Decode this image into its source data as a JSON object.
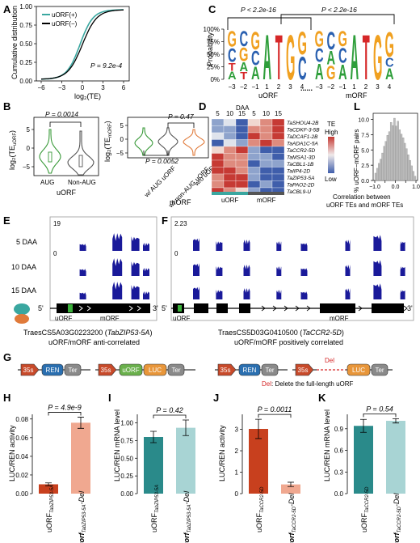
{
  "panels": {
    "A": {
      "letter": "A",
      "legend": [
        "uORF(+)",
        "uORF(−)"
      ],
      "colors": {
        "plus": "#3aa7a0",
        "minus": "#000000"
      },
      "ylabel": "Cumulative distribution",
      "xlabel": "log₂(TE)",
      "xticks": [
        "−6",
        "−3",
        "0",
        "3",
        "6"
      ],
      "yticks": [
        "0.00",
        "0.25",
        "0.50",
        "0.75",
        "1.00"
      ],
      "pvalue": "P = 9.2e-4"
    },
    "B": {
      "letter": "B",
      "left": {
        "ylabel": "log₂(TE",
        "ysub": "uORF",
        "ylabel_end": ")",
        "yticks": [
          "−5",
          "0",
          "5"
        ],
        "categories": [
          "AUG",
          "Non-AUG"
        ],
        "xlabel": "uORF",
        "pvalue": "P = 0.0014",
        "colors": [
          "#3a9a3a",
          "#555555"
        ]
      },
      "right": {
        "ylabel": "log₂(TE",
        "ysub": "mORF",
        "ylabel_end": ")",
        "yticks": [
          "−5",
          "0",
          "5"
        ],
        "categories": [
          "w/ AUG uORF",
          "w/ non-AUG uORF",
          "w/o uORF"
        ],
        "xlabel": "mORF",
        "p_top": "P = 0.47",
        "p_bottom": "P = 0.0052",
        "colors": [
          "#3a9a3a",
          "#555555",
          "#e07a3a"
        ]
      }
    },
    "C": {
      "letter": "C",
      "ylabel": "Probability",
      "yticks": [
        "0%",
        "25%",
        "50%",
        "75%",
        "100%"
      ],
      "p1": "P < 2.2e-16",
      "p2": "P < 2.2e-16",
      "left_label": "uORF",
      "right_label": "mORF",
      "left_positions": [
        "−3",
        "−2",
        "−1",
        "1",
        "2",
        "3",
        "4"
      ],
      "right_positions": [
        "−3",
        "−2",
        "−1",
        "1",
        "2",
        "3",
        "4"
      ],
      "ellipsis": "......",
      "colors": {
        "A": "#2e9e3a",
        "C": "#2a60b0",
        "G": "#f0a020",
        "T": "#d62728"
      }
    },
    "D": {
      "letter": "D",
      "daa_label": "DAA",
      "cols": [
        "5",
        "10",
        "15",
        "5",
        "10",
        "15"
      ],
      "genes": [
        "TaSHOU4-2B",
        "TaCDKF-3-5B",
        "TaDCAF1-2B",
        "TaADA1C-5A",
        "TaCCR2-5D",
        "TaMSA1-3D",
        "TaCBL1-1B",
        "TaIIP4-2D",
        "TaZIP53-5A",
        "TaPAO2-2D",
        "TaCBL9-U"
      ],
      "heat": [
        [
          1,
          2,
          0,
          3,
          4,
          5
        ],
        [
          1,
          1,
          0,
          4,
          4,
          5
        ],
        [
          2,
          1,
          0,
          5,
          4,
          5
        ],
        [
          0,
          2,
          1,
          4,
          5,
          4
        ],
        [
          3,
          4,
          5,
          1,
          0,
          0
        ],
        [
          5,
          4,
          4,
          1,
          1,
          0
        ],
        [
          5,
          4,
          4,
          0,
          1,
          1
        ],
        [
          5,
          5,
          4,
          1,
          0,
          0
        ],
        [
          4,
          5,
          5,
          1,
          0,
          0
        ],
        [
          4,
          5,
          5,
          0,
          1,
          0
        ],
        [
          5,
          4,
          3,
          1,
          0,
          0
        ]
      ],
      "palette": [
        "#3f5eab",
        "#8ea3cc",
        "#dfe3ec",
        "#f0d8d0",
        "#de8b7e",
        "#c63a34"
      ],
      "group_labels": [
        "uORF",
        "mORF"
      ],
      "group_colors": [
        "#3aa7a0",
        "#555555"
      ],
      "legend_title": "TE",
      "legend_high": "High",
      "legend_low": "Low"
    },
    "L": {
      "letter": "L",
      "ylabel": "% uORF−mORF pairs",
      "yticks": [
        "0.0",
        "2.5",
        "5.0",
        "7.5",
        "10.0"
      ],
      "xticks": [
        "−1.0",
        "−0.5",
        "0.0",
        "0.5",
        "1.0"
      ],
      "xlabel1": "Correlation between",
      "xlabel2": "uORF TEs and mORF TEs",
      "hist": [
        1.2,
        2.0,
        2.8,
        3.5,
        4.5,
        5.6,
        6.4,
        7.4,
        8.0,
        9.5,
        9.0,
        10.2,
        8.9,
        9.7,
        8.3,
        7.6,
        7.0,
        6.1,
        5.2,
        4.2,
        3.3,
        2.4,
        1.5,
        0.7
      ]
    },
    "E": {
      "letter": "E",
      "scale": "19",
      "zero": "0",
      "tracks": [
        "5 DAA",
        "10 DAA",
        "15 DAA"
      ],
      "five": "5'",
      "three": "3'",
      "uorf": "uORF",
      "morf": "mORF",
      "gene_id": "TraesCS5A03G0223200 (",
      "gene_name": "TabZIP53-5A",
      "gene_id_end": ")",
      "note": "uORF/mORF anti-correlated"
    },
    "F": {
      "letter": "F",
      "scale": "2.23",
      "zero": "0",
      "five": "5'",
      "three": "3'",
      "uorf": "uORF",
      "morf": "mORF",
      "gene_id": "TraesCS5D03G0410500 (",
      "gene_name": "TaCCR2-5D",
      "gene_id_end": ")",
      "note": "uORF/mORF positively correlated"
    },
    "G": {
      "letter": "G",
      "c1": [
        "35s",
        "REN",
        "Ter"
      ],
      "c2": [
        "35s",
        "uORF",
        "LUC",
        "Ter"
      ],
      "c3": [
        "35s",
        "REN",
        "Ter"
      ],
      "c4": [
        "35s",
        "LUC",
        "Ter"
      ],
      "del_label": "Del",
      "del_note_prefix": "Del",
      "del_note": ": Delete the full-length uORF",
      "colors": {
        "p35s": "#c84a2a",
        "ren": "#2a6fb0",
        "ter": "#8a8a8a",
        "uorf": "#6ab04c",
        "luc": "#e8963a",
        "del": "#d62728"
      }
    },
    "H": {
      "letter": "H",
      "ylabel": "LUC/REN activity",
      "pvalue": "P = 4.9e-9",
      "yticks": [
        "0.00",
        "0.02",
        "0.04",
        "0.06",
        "0.08"
      ],
      "cat1": "uORF",
      "cat1_sub": "TabZIP53-5A",
      "cat2": "uorf",
      "cat2_sub": "TabZIP53-5A",
      "cat2_end": "-Del",
      "values": [
        0.01,
        0.076
      ],
      "errors": [
        0.0015,
        0.006
      ],
      "colors": [
        "#c8401e",
        "#f0a890"
      ],
      "ymax": 0.085
    },
    "I": {
      "letter": "I",
      "ylabel": "LUC/REN mRNA level",
      "pvalue": "P = 0.42",
      "yticks": [
        "0.00",
        "0.25",
        "0.50",
        "0.75",
        "1.00"
      ],
      "cat1": "uORF",
      "cat1_sub": "TabZIP53-5A",
      "cat2": "uorf",
      "cat2_sub": "TabZIP53-5A",
      "cat2_end": "-Del",
      "values": [
        0.8,
        0.93
      ],
      "errors": [
        0.08,
        0.11
      ],
      "colors": [
        "#2a8a8a",
        "#a8d4d4"
      ],
      "ymax": 1.12
    },
    "J": {
      "letter": "J",
      "ylabel": "LUC/REN activity",
      "pvalue": "P = 0.0011",
      "yticks": [
        "0",
        "1",
        "2",
        "3"
      ],
      "cat1": "uORF",
      "cat1_sub": "TaCCR2-5D",
      "cat2": "uorf",
      "cat2_sub": "TaCCR2-5D",
      "cat2_end": "-Del",
      "values": [
        3.02,
        0.43
      ],
      "errors": [
        0.45,
        0.1
      ],
      "colors": [
        "#c8401e",
        "#f0a890"
      ],
      "ymax": 3.7
    },
    "K": {
      "letter": "K",
      "ylabel": "LUC/REN mRNA level",
      "pvalue": "P = 0.54",
      "yticks": [
        "0.0",
        "0.3",
        "0.6",
        "0.9"
      ],
      "cat1": "uORF",
      "cat1_sub": "TaCCR2-5D",
      "cat2": "uorf",
      "cat2_sub": "TaCCR2-5D",
      "cat2_end": "-Del",
      "values": [
        0.94,
        1.01
      ],
      "errors": [
        0.09,
        0.03
      ],
      "colors": [
        "#2a8a8a",
        "#a8d4d4"
      ],
      "ymax": 1.1
    }
  }
}
